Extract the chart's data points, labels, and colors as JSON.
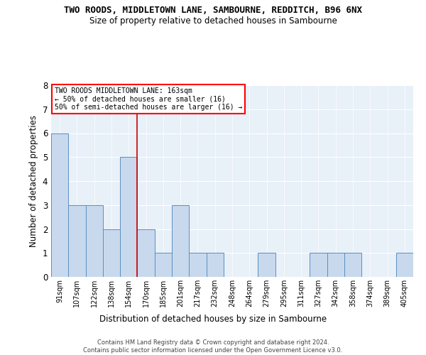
{
  "title": "TWO ROODS, MIDDLETOWN LANE, SAMBOURNE, REDDITCH, B96 6NX",
  "subtitle": "Size of property relative to detached houses in Sambourne",
  "xlabel": "Distribution of detached houses by size in Sambourne",
  "ylabel": "Number of detached properties",
  "categories": [
    "91sqm",
    "107sqm",
    "122sqm",
    "138sqm",
    "154sqm",
    "170sqm",
    "185sqm",
    "201sqm",
    "217sqm",
    "232sqm",
    "248sqm",
    "264sqm",
    "279sqm",
    "295sqm",
    "311sqm",
    "327sqm",
    "342sqm",
    "358sqm",
    "374sqm",
    "389sqm",
    "405sqm"
  ],
  "values": [
    6,
    3,
    3,
    2,
    5,
    2,
    1,
    3,
    1,
    1,
    0,
    0,
    1,
    0,
    0,
    1,
    1,
    1,
    0,
    0,
    1
  ],
  "bar_color": "#c8d9ed",
  "bar_edge_color": "#5a8fc2",
  "background_color": "#e8f0f8",
  "grid_color": "#ffffff",
  "vline_x": 4.5,
  "vline_color": "#cc0000",
  "ylim": [
    0,
    8
  ],
  "yticks": [
    0,
    1,
    2,
    3,
    4,
    5,
    6,
    7,
    8
  ],
  "annotation_line1": "TWO ROODS MIDDLETOWN LANE: 163sqm",
  "annotation_line2": "← 50% of detached houses are smaller (16)",
  "annotation_line3": "50% of semi-detached houses are larger (16) →",
  "footer_line1": "Contains HM Land Registry data © Crown copyright and database right 2024.",
  "footer_line2": "Contains public sector information licensed under the Open Government Licence v3.0."
}
